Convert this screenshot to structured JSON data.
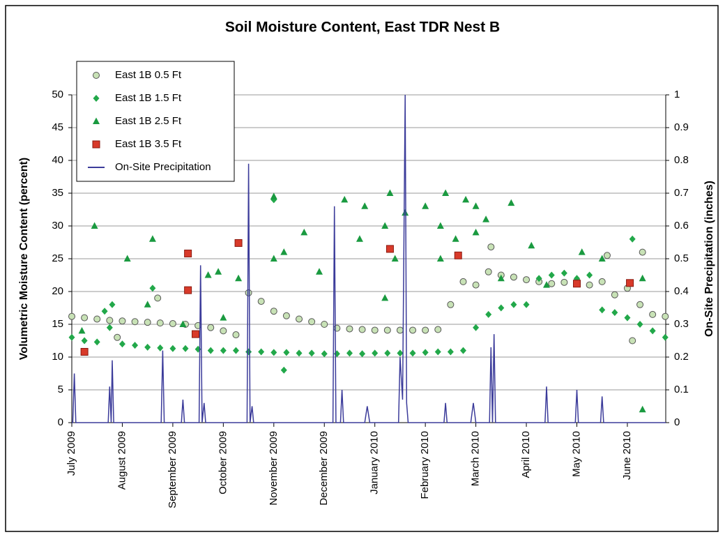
{
  "chart_data": {
    "type": "scatter",
    "title": "Soil Moisture Content, East TDR Nest B",
    "ylabel": "Volumetric Moisture Content (percent)",
    "y2label": "On-Site Precipitation (inches)",
    "xlim": [
      0,
      11.76
    ],
    "xticks": [
      {
        "value": 0,
        "label": "July 2009"
      },
      {
        "value": 1,
        "label": "August 2009"
      },
      {
        "value": 2,
        "label": "September 2009"
      },
      {
        "value": 3,
        "label": "October 2009"
      },
      {
        "value": 4,
        "label": "November 2009"
      },
      {
        "value": 5,
        "label": "December 2009"
      },
      {
        "value": 6,
        "label": "January 2010"
      },
      {
        "value": 7,
        "label": "February 2010"
      },
      {
        "value": 8,
        "label": "March 2010"
      },
      {
        "value": 9,
        "label": "April 2010"
      },
      {
        "value": 10,
        "label": "May 2010"
      },
      {
        "value": 11,
        "label": "June 2010"
      }
    ],
    "ylim": [
      0,
      50
    ],
    "yticks": [
      0,
      5,
      10,
      15,
      20,
      25,
      30,
      35,
      40,
      45,
      50
    ],
    "y2lim": [
      0,
      1
    ],
    "y2ticks": [
      0,
      0.1,
      0.2,
      0.3,
      0.4,
      0.5,
      0.6,
      0.7,
      0.8,
      0.9,
      1
    ],
    "grid": true,
    "legend": "upper left",
    "series": [
      {
        "name": "East 1B 0.5 Ft",
        "marker": "circle",
        "color": "#c8e2b6",
        "x": [
          0,
          0.25,
          0.5,
          0.75,
          1,
          1.25,
          1.5,
          1.75,
          2,
          2.25,
          2.5,
          2.75,
          3,
          3.25,
          3.5,
          3.75,
          4,
          4.25,
          4.5,
          4.75,
          5,
          5.25,
          5.5,
          5.75,
          6,
          6.25,
          6.5,
          6.75,
          7,
          7.25,
          7.5,
          7.75,
          8,
          8.25,
          8.5,
          8.75,
          9,
          9.25,
          9.5,
          9.75,
          10,
          10.25,
          10.5,
          10.75,
          11,
          11.25,
          11.5,
          11.75,
          1.7,
          0.9,
          10.6,
          11.3,
          11.1,
          8.3
        ],
        "values": [
          16.2,
          16,
          15.8,
          15.6,
          15.5,
          15.4,
          15.3,
          15.2,
          15.1,
          15,
          14.8,
          14.5,
          14,
          13.4,
          19.8,
          18.5,
          17,
          16.3,
          15.8,
          15.4,
          15,
          14.4,
          14.3,
          14.2,
          14.1,
          14.1,
          14.1,
          14.1,
          14.1,
          14.2,
          18,
          21.5,
          21,
          23,
          22.5,
          22.2,
          21.8,
          21.5,
          21.2,
          21.4,
          21.6,
          21,
          21.5,
          19.5,
          20.5,
          18,
          16.5,
          16.2,
          19,
          13,
          25.5,
          26,
          12.5,
          26.8
        ]
      },
      {
        "name": "East 1B 1.5 Ft",
        "marker": "diamond",
        "color": "#22a84a",
        "x": [
          0,
          0.25,
          0.5,
          0.75,
          1,
          1.25,
          1.5,
          1.75,
          2,
          2.25,
          2.5,
          2.75,
          3,
          3.25,
          3.5,
          3.75,
          4,
          4.25,
          4.5,
          4.75,
          5,
          5.25,
          5.5,
          5.75,
          6,
          6.25,
          6.5,
          6.75,
          7,
          7.25,
          7.5,
          7.75,
          8,
          8.25,
          8.5,
          8.75,
          9,
          9.25,
          9.5,
          9.75,
          10,
          10.25,
          10.5,
          10.75,
          11,
          11.25,
          11.5,
          11.75,
          4.0,
          11.1,
          4.2,
          0.8,
          1.6,
          0.65
        ],
        "values": [
          13,
          12.5,
          12.3,
          14.5,
          12,
          11.8,
          11.5,
          11.4,
          11.3,
          11.3,
          11.2,
          11,
          11,
          11,
          10.8,
          10.8,
          10.7,
          10.7,
          10.6,
          10.6,
          10.5,
          10.5,
          10.6,
          10.5,
          10.6,
          10.6,
          10.6,
          10.6,
          10.7,
          10.8,
          10.8,
          11,
          14.5,
          16.5,
          17.5,
          18,
          18,
          22,
          22.5,
          22.8,
          22,
          22.5,
          17.2,
          16.8,
          16,
          15,
          14,
          13,
          34,
          28,
          8,
          18,
          20.5,
          17
        ]
      },
      {
        "name": "East 1B 2.5 Ft",
        "marker": "triangle",
        "color": "#1a9a40",
        "x": [
          0.45,
          1.1,
          1.6,
          1.5,
          0.2,
          2.2,
          2.7,
          2.9,
          3.0,
          3.3,
          4.0,
          4.0,
          4.2,
          4.6,
          4.9,
          5.4,
          5.7,
          5.8,
          6.3,
          6.2,
          6.4,
          6.6,
          6.2,
          7.0,
          7.3,
          7.4,
          7.6,
          7.3,
          8.0,
          7.8,
          8.2,
          8.0,
          8.7,
          8.5,
          9.1,
          9.4,
          10.1,
          10.5,
          11.3,
          11.3
        ],
        "values": [
          30,
          25,
          28,
          18,
          14,
          15,
          22.5,
          23,
          16,
          22,
          34.5,
          25,
          26,
          29,
          23,
          34,
          28,
          33,
          35,
          30,
          25,
          32,
          19,
          33,
          30,
          35,
          28,
          25,
          33,
          34,
          31,
          29,
          33.5,
          22,
          27,
          21,
          26,
          25,
          22,
          2
        ]
      },
      {
        "name": "East 1B 3.5 Ft",
        "marker": "square",
        "color": "#d83a2a",
        "x": [
          0.25,
          2.3,
          2.3,
          2.45,
          3.3,
          6.3,
          7.65,
          10.0,
          11.05
        ],
        "values": [
          10.8,
          20.2,
          25.8,
          13.5,
          27.4,
          26.5,
          25.5,
          21.2,
          21.3
        ]
      },
      {
        "name": "On-Site Precipitation",
        "type": "line",
        "axis": "y2",
        "color": "#3b3b9a",
        "x": [
          0,
          0.02,
          0.05,
          0.08,
          0.72,
          0.75,
          0.78,
          0.8,
          0.83,
          1.77,
          1.8,
          1.83,
          2.17,
          2.2,
          2.23,
          2.52,
          2.55,
          2.58,
          2.62,
          2.65,
          3.47,
          3.5,
          3.53,
          3.57,
          3.6,
          5.17,
          5.2,
          5.23,
          5.32,
          5.35,
          5.38,
          5.8,
          5.85,
          5.9,
          6.47,
          6.5,
          6.55,
          6.6,
          6.63,
          6.66,
          7.37,
          7.4,
          7.43,
          7.9,
          7.95,
          8.0,
          8.27,
          8.3,
          8.33,
          8.36,
          8.39,
          9.37,
          9.4,
          9.43,
          9.97,
          10.0,
          10.03,
          10.47,
          10.5,
          10.53,
          11.76
        ],
        "values": [
          0,
          0,
          0.15,
          0,
          0,
          0.11,
          0,
          0.19,
          0,
          0,
          0.22,
          0,
          0,
          0.07,
          0,
          0,
          0.48,
          0,
          0.06,
          0,
          0,
          0.79,
          0,
          0.05,
          0,
          0,
          0.66,
          0,
          0,
          0.1,
          0,
          0,
          0.05,
          0,
          0,
          0.2,
          0.07,
          1.0,
          0.06,
          0,
          0,
          0.06,
          0,
          0,
          0.06,
          0,
          0,
          0.23,
          0,
          0.27,
          0,
          0,
          0.11,
          0,
          0,
          0.1,
          0,
          0,
          0.08,
          0,
          0
        ]
      }
    ]
  }
}
